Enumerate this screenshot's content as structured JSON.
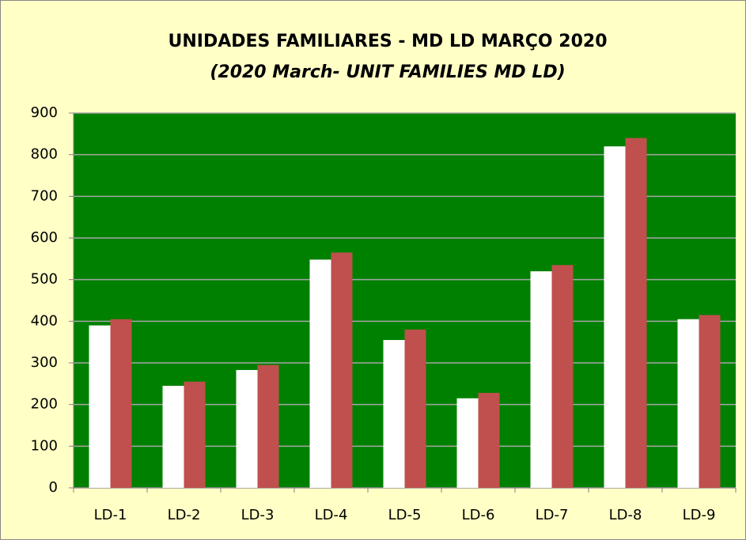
{
  "chart_data": {
    "type": "bar",
    "title": "UNIDADES FAMILIARES - MD LD MARÇO 2020",
    "subtitle": "(2020 March- UNIT FAMILIES MD LD)",
    "categories": [
      "LD-1",
      "LD-2",
      "LD-3",
      "LD-4",
      "LD-5",
      "LD-6",
      "LD-7",
      "LD-8",
      "LD-9"
    ],
    "series": [
      {
        "color": "#ffffff",
        "values": [
          390,
          245,
          283,
          548,
          355,
          215,
          520,
          820,
          405
        ]
      },
      {
        "color": "#c0504d",
        "values": [
          405,
          255,
          295,
          565,
          380,
          228,
          535,
          840,
          415
        ]
      }
    ],
    "ylim": [
      0,
      900
    ],
    "yticks": [
      0,
      100,
      200,
      300,
      400,
      500,
      600,
      700,
      800,
      900
    ],
    "grid": true,
    "plot_background": "#008000"
  }
}
